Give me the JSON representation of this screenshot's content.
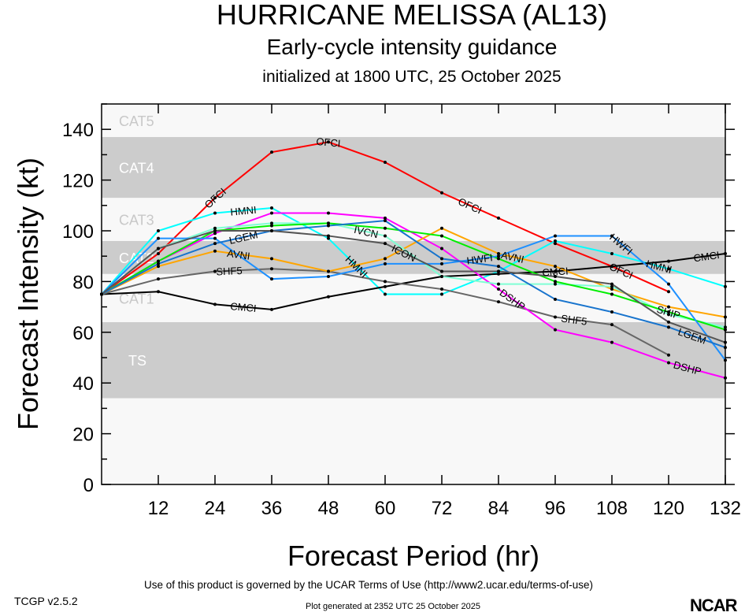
{
  "header": {
    "title": "HURRICANE MELISSA (AL13)",
    "subtitle": "Early-cycle intensity guidance",
    "init": "initialized at 1800 UTC, 25 October 2025"
  },
  "footer": {
    "terms": "Use of this product is governed by the UCAR Terms of Use (http://www2.ucar.edu/terms-of-use)",
    "generated": "Plot generated at 2352 UTC   25 October 2025",
    "version": "TCGP v2.5.2",
    "logo": "NCAR"
  },
  "chart_data": {
    "type": "line",
    "xlabel": "Forecast Period (hr)",
    "ylabel": "Forecast Intensity (kt)",
    "xlim": [
      0,
      132
    ],
    "ylim": [
      0,
      150
    ],
    "xticks": [
      12,
      24,
      36,
      48,
      60,
      72,
      84,
      96,
      108,
      120,
      132
    ],
    "yticks": [
      0,
      20,
      40,
      60,
      80,
      100,
      120,
      140
    ],
    "categories_bands": [
      {
        "name": "TS",
        "range": [
          34,
          64
        ],
        "shade": "#cccccc"
      },
      {
        "name": "CAT1",
        "range": [
          64,
          83
        ],
        "shade": "#f8f8f8"
      },
      {
        "name": "CAT2",
        "range": [
          83,
          96
        ],
        "shade": "#cccccc"
      },
      {
        "name": "CAT3",
        "range": [
          96,
          113
        ],
        "shade": "#f8f8f8"
      },
      {
        "name": "CAT4",
        "range": [
          113,
          137
        ],
        "shade": "#cccccc"
      },
      {
        "name": "CAT5",
        "range": [
          137,
          150
        ],
        "shade": "#f8f8f8"
      }
    ],
    "x": [
      0,
      12,
      24,
      36,
      48,
      60,
      72,
      84,
      96,
      108,
      120,
      132
    ],
    "series": [
      {
        "name": "OFCI",
        "color": "#ff0000",
        "values": [
          75,
          91,
          113,
          131,
          135,
          127,
          115,
          105,
          95,
          86,
          76,
          null
        ],
        "label_at": [
          24,
          48,
          78,
          110
        ]
      },
      {
        "name": "HMNI",
        "color": "#00ffff",
        "values": [
          75,
          100,
          107,
          109,
          97,
          75,
          75,
          84,
          96,
          91,
          85,
          78
        ],
        "label_at": [
          24,
          54,
          112
        ]
      },
      {
        "name": "CMCI",
        "color": "#000000",
        "values": [
          75,
          76,
          71,
          69,
          74,
          78,
          82,
          83,
          84,
          86,
          88,
          91
        ],
        "label_at": [
          30,
          128,
          96
        ]
      },
      {
        "name": "SHF5",
        "color": "#666666",
        "values": [
          75,
          81,
          84,
          85,
          84,
          80,
          77,
          72,
          66,
          63,
          51,
          null
        ],
        "label_at": [
          27,
          100
        ]
      },
      {
        "name": "DSHP",
        "color": "#ff00ff",
        "values": [
          75,
          88,
          99,
          107,
          107,
          105,
          93,
          77,
          61,
          56,
          48,
          42
        ],
        "label_at": [
          87,
          124
        ]
      },
      {
        "name": "AVNI",
        "color": "#ffa500",
        "values": [
          75,
          86,
          92,
          89,
          84,
          89,
          101,
          91,
          86,
          77,
          70,
          66
        ],
        "label_at": [
          29,
          87
        ]
      },
      {
        "name": "IVCN",
        "color": "#7fffd4",
        "values": [
          75,
          93,
          101,
          103,
          103,
          98,
          82,
          79,
          79,
          78,
          67,
          62
        ],
        "label_at": [
          56
        ]
      },
      {
        "name": "SHIP",
        "color": "#00ee00",
        "values": [
          75,
          88,
          100,
          102,
          103,
          101,
          98,
          89,
          80,
          75,
          68,
          61
        ],
        "label_at": [
          120
        ]
      },
      {
        "name": "HWFI",
        "color": "#1e90ff",
        "values": [
          75,
          97,
          97,
          81,
          82,
          87,
          87,
          90,
          98,
          98,
          79,
          49
        ],
        "label_at": [
          86,
          116
        ]
      },
      {
        "name": "LGEM",
        "color": "#1874cd",
        "values": [
          75,
          87,
          95,
          100,
          102,
          104,
          89,
          86,
          73,
          68,
          62,
          54
        ],
        "label_at": [
          27,
          122
        ]
      },
      {
        "name": "ICON",
        "color": "#555555",
        "values": [
          75,
          93,
          100,
          100,
          98,
          95,
          84,
          84,
          82,
          79,
          64,
          56
        ],
        "label_at": [
          58
        ]
      }
    ]
  }
}
